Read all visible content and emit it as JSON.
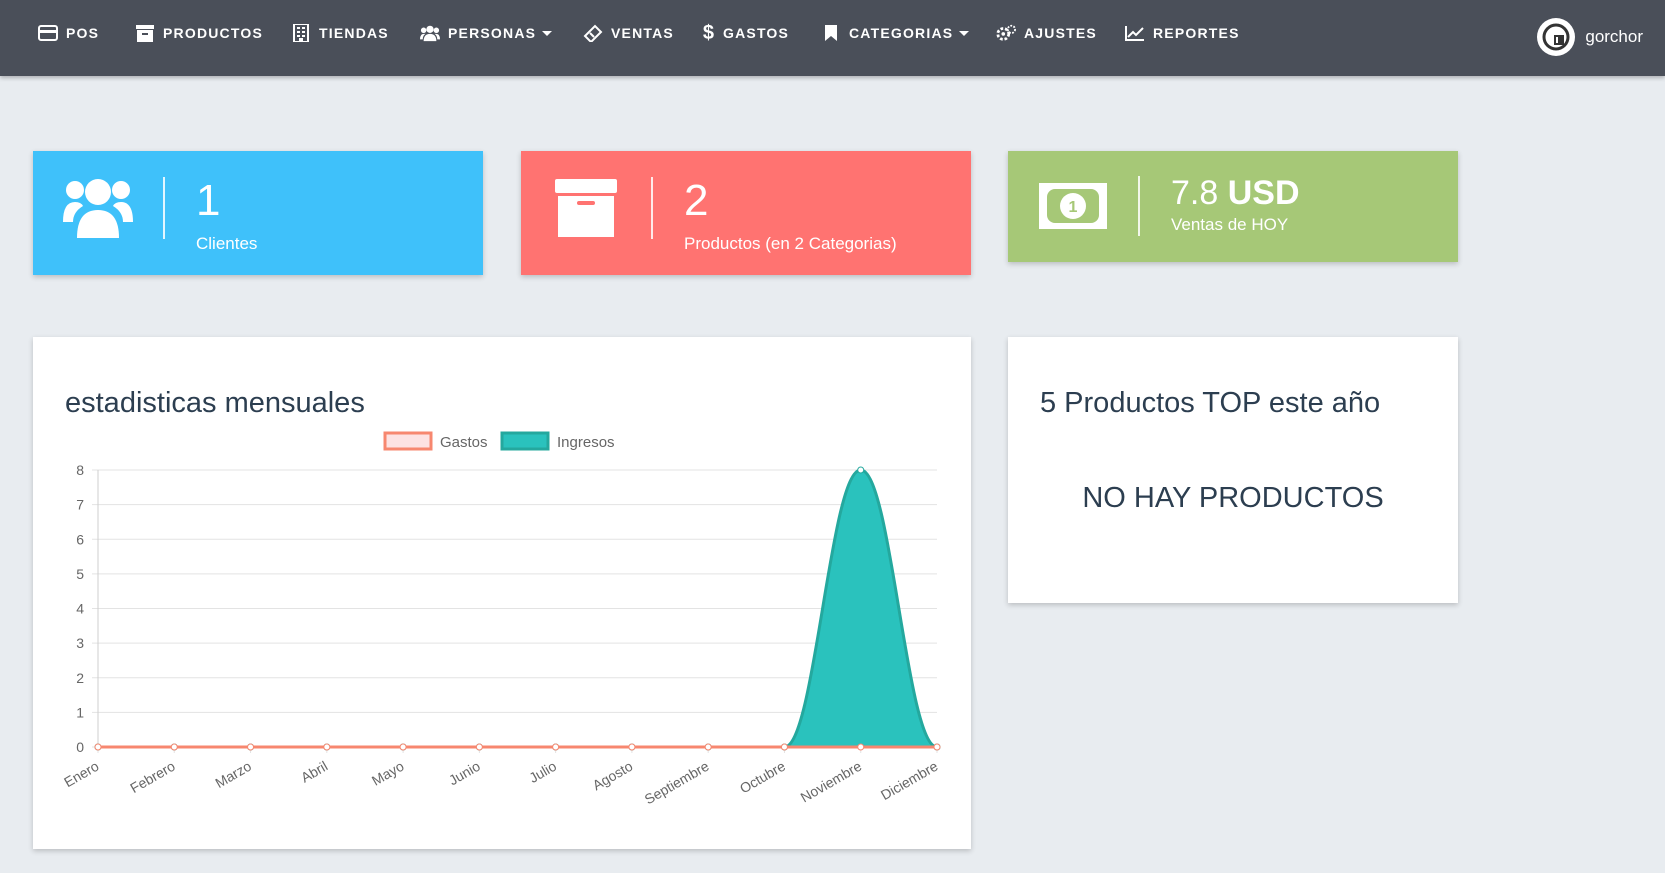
{
  "nav": {
    "items": [
      {
        "label": "POS",
        "icon": "credit-card-icon"
      },
      {
        "label": "PRODUCTOS",
        "icon": "archive-icon"
      },
      {
        "label": "TIENDAS",
        "icon": "building-icon"
      },
      {
        "label": "PERSONAS",
        "icon": "users-icon",
        "dropdown": true
      },
      {
        "label": "VENTAS",
        "icon": "ticket-icon"
      },
      {
        "label": "GASTOS",
        "icon": "dollar-icon"
      },
      {
        "label": "CATEGORIAS",
        "icon": "bookmark-icon",
        "dropdown": true
      },
      {
        "label": "AJUSTES",
        "icon": "gears-icon"
      },
      {
        "label": "REPORTES",
        "icon": "line-chart-icon"
      }
    ],
    "user": "gorchor"
  },
  "cards": {
    "clientes": {
      "value": "1",
      "label": "Clientes",
      "color": "#3fc1fa"
    },
    "productos": {
      "value": "2",
      "label": "Productos (en 2 Categorias)",
      "color": "#ff7371"
    },
    "ventas": {
      "value": "7.8",
      "unit": "USD",
      "label": "Ventas de HOY",
      "color": "#a6c877"
    }
  },
  "stats_panel": {
    "title": "estadisticas mensuales"
  },
  "top_panel": {
    "title": "5 Productos TOP este año",
    "empty_text": "NO HAY PRODUCTOS"
  },
  "chart_data": {
    "type": "area",
    "categories": [
      "Enero",
      "Febrero",
      "Marzo",
      "Abril",
      "Mayo",
      "Junio",
      "Julio",
      "Agosto",
      "Septiembre",
      "Octubre",
      "Noviembre",
      "Diciembre"
    ],
    "series": [
      {
        "name": "Gastos",
        "values": [
          0,
          0,
          0,
          0,
          0,
          0,
          0,
          0,
          0,
          0,
          0,
          0
        ],
        "color": "#f7876f",
        "fill": "#fde2e2"
      },
      {
        "name": "Ingresos",
        "values": [
          0,
          0,
          0,
          0,
          0,
          0,
          0,
          0,
          0,
          0,
          8,
          0
        ],
        "color": "#24a89e",
        "fill": "#2ac2bd"
      }
    ],
    "ylim": [
      0,
      8
    ],
    "yticks": [
      0,
      1,
      2,
      3,
      4,
      5,
      6,
      7,
      8
    ],
    "grid": true,
    "legend": "top"
  }
}
